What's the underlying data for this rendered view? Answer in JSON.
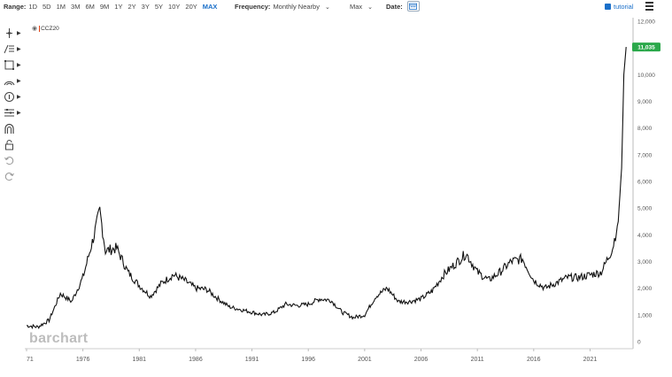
{
  "toolbar": {
    "range_label": "Range:",
    "ranges": [
      "1D",
      "5D",
      "1M",
      "3M",
      "6M",
      "9M",
      "1Y",
      "2Y",
      "3Y",
      "5Y",
      "10Y",
      "20Y",
      "MAX"
    ],
    "active_range": "MAX",
    "frequency_label": "Frequency:",
    "frequency_value": "Monthly Nearby",
    "period_value": "Max",
    "date_label": "Date:",
    "tutorial_label": "tutorial"
  },
  "left_tools": [
    {
      "icon": "crosshair-icon"
    },
    {
      "icon": "trendline-tools-icon"
    },
    {
      "icon": "shapes-icon"
    },
    {
      "icon": "arc-icon"
    },
    {
      "icon": "annotation-icon"
    },
    {
      "icon": "fibonacci-icon"
    },
    {
      "icon": "magnet-icon"
    },
    {
      "icon": "lock-icon"
    },
    {
      "icon": "undo-icon"
    },
    {
      "icon": "redo-icon"
    }
  ],
  "legend": {
    "symbol": "CCZ20"
  },
  "watermark": "barchart",
  "colors": {
    "accent": "#1a6fc9",
    "price_badge": "#2aa84a",
    "line": "#111111"
  },
  "chart_data": {
    "type": "line",
    "series": [
      {
        "name": "CCZ20"
      }
    ],
    "x": [
      1971,
      1972,
      1973,
      1974,
      1975,
      1976,
      1977,
      1977.5,
      1978,
      1979,
      1980,
      1981,
      1982,
      1983,
      1984,
      1985,
      1986,
      1987,
      1988,
      1989,
      1990,
      1991,
      1992,
      1993,
      1994,
      1995,
      1996,
      1997,
      1998,
      1999,
      2000,
      2001,
      2002,
      2003,
      2004,
      2005,
      2006,
      2007,
      2008,
      2009,
      2010,
      2011,
      2012,
      2013,
      2014,
      2015,
      2016,
      2017,
      2018,
      2019,
      2020,
      2021,
      2022,
      2023,
      2023.5,
      2023.8,
      2024,
      2024.2
    ],
    "y": [
      600,
      550,
      800,
      1800,
      1500,
      2400,
      4000,
      4900,
      3400,
      3500,
      2600,
      2100,
      1700,
      2200,
      2500,
      2300,
      2000,
      1950,
      1600,
      1300,
      1200,
      1100,
      1000,
      1100,
      1400,
      1350,
      1400,
      1600,
      1550,
      1100,
      900,
      1000,
      1700,
      2000,
      1500,
      1500,
      1600,
      1900,
      2500,
      2900,
      3300,
      2600,
      2300,
      2600,
      3000,
      3100,
      2300,
      2000,
      2200,
      2400,
      2400,
      2500,
      2600,
      3500,
      4500,
      6500,
      10000,
      11035
    ],
    "last_price_label": "11,035",
    "y_ticks": [
      "0",
      "1,000",
      "2,000",
      "3,000",
      "4,000",
      "5,000",
      "6,000",
      "7,000",
      "8,000",
      "9,000",
      "10,000",
      "11,000",
      "12,000"
    ],
    "x_ticks": [
      "71",
      "1976",
      "1981",
      "1986",
      "1991",
      "1996",
      "2001",
      "2006",
      "2011",
      "2016",
      "2021"
    ],
    "ylim": [
      0,
      12000
    ],
    "xlim": [
      1971,
      2024.5
    ],
    "grid": false,
    "axis_position": "right"
  }
}
